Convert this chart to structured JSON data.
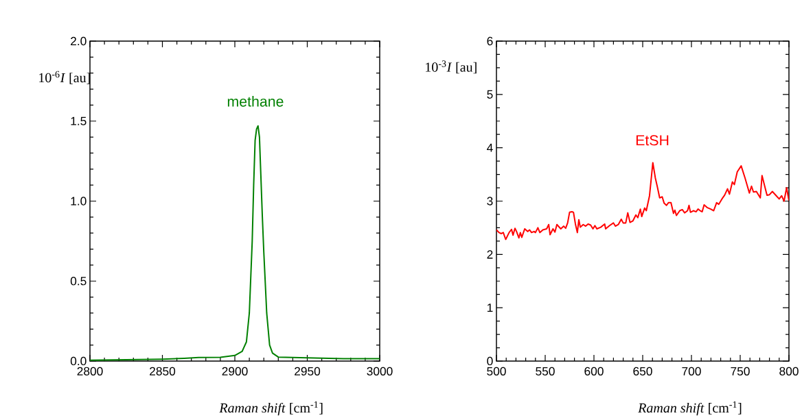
{
  "chart_data": [
    {
      "type": "line",
      "color": "#008000",
      "xlabel": "*Raman shift* [cm$^{-1}$]",
      "ylabel": "10$^{-6}$*I* [au]",
      "annotations": [
        "methane"
      ],
      "xlim": [
        2800,
        3000
      ],
      "ylim": [
        0,
        2.0
      ],
      "xticks": [
        {
          "value": 2800,
          "label": "2800"
        },
        {
          "value": 2810,
          "label": null
        },
        {
          "value": 2820,
          "label": null
        },
        {
          "value": 2830,
          "label": null
        },
        {
          "value": 2840,
          "label": null
        },
        {
          "value": 2850,
          "label": "2850"
        },
        {
          "value": 2860,
          "label": null
        },
        {
          "value": 2870,
          "label": null
        },
        {
          "value": 2880,
          "label": null
        },
        {
          "value": 2890,
          "label": null
        },
        {
          "value": 2900,
          "label": "2900"
        },
        {
          "value": 2910,
          "label": null
        },
        {
          "value": 2920,
          "label": null
        },
        {
          "value": 2930,
          "label": null
        },
        {
          "value": 2940,
          "label": null
        },
        {
          "value": 2950,
          "label": "2950"
        },
        {
          "value": 2960,
          "label": null
        },
        {
          "value": 2970,
          "label": null
        },
        {
          "value": 2980,
          "label": null
        },
        {
          "value": 2990,
          "label": null
        },
        {
          "value": 3000,
          "label": "3000"
        }
      ],
      "yticks": [
        {
          "value": 0,
          "label": "0.0"
        },
        {
          "value": 0.1,
          "label": null
        },
        {
          "value": 0.2,
          "label": null
        },
        {
          "value": 0.3,
          "label": null
        },
        {
          "value": 0.4,
          "label": null
        },
        {
          "value": 0.5,
          "label": "0.5"
        },
        {
          "value": 0.6,
          "label": null
        },
        {
          "value": 0.7,
          "label": null
        },
        {
          "value": 0.8,
          "label": null
        },
        {
          "value": 0.9,
          "label": null
        },
        {
          "value": 1.0,
          "label": "1.0"
        },
        {
          "value": 1.1,
          "label": null
        },
        {
          "value": 1.2,
          "label": null
        },
        {
          "value": 1.3,
          "label": null
        },
        {
          "value": 1.4,
          "label": null
        },
        {
          "value": 1.5,
          "label": "1.5"
        },
        {
          "value": 1.6,
          "label": null
        },
        {
          "value": 1.7,
          "label": null
        },
        {
          "value": 1.8,
          "label": null
        },
        {
          "value": 1.9,
          "label": null
        },
        {
          "value": 2.0,
          "label": "2.0"
        }
      ],
      "x": [
        2800,
        2825,
        2850,
        2865,
        2875,
        2890,
        2900,
        2905,
        2908,
        2910,
        2912,
        2913,
        2914,
        2915,
        2916,
        2917,
        2918,
        2919,
        2920,
        2922,
        2924,
        2926,
        2930,
        2950,
        2975,
        3000
      ],
      "values": [
        0.005,
        0.008,
        0.012,
        0.017,
        0.022,
        0.024,
        0.035,
        0.06,
        0.12,
        0.3,
        0.75,
        1.1,
        1.38,
        1.45,
        1.47,
        1.4,
        1.15,
        0.9,
        0.68,
        0.3,
        0.1,
        0.05,
        0.025,
        0.02,
        0.015,
        0.015
      ]
    },
    {
      "type": "line",
      "color": "#ff0000",
      "xlabel": "*Raman shift* [cm$^{-1}$]",
      "ylabel": "10$^{-3}$*I* [au]",
      "annotations": [
        "EtSH"
      ],
      "xlim": [
        500,
        800
      ],
      "ylim": [
        0,
        6
      ],
      "xticks": [
        {
          "value": 500,
          "label": "500"
        },
        {
          "value": 510,
          "label": null
        },
        {
          "value": 520,
          "label": null
        },
        {
          "value": 530,
          "label": null
        },
        {
          "value": 540,
          "label": null
        },
        {
          "value": 550,
          "label": "550"
        },
        {
          "value": 560,
          "label": null
        },
        {
          "value": 570,
          "label": null
        },
        {
          "value": 580,
          "label": null
        },
        {
          "value": 590,
          "label": null
        },
        {
          "value": 600,
          "label": "600"
        },
        {
          "value": 610,
          "label": null
        },
        {
          "value": 620,
          "label": null
        },
        {
          "value": 630,
          "label": null
        },
        {
          "value": 640,
          "label": null
        },
        {
          "value": 650,
          "label": "650"
        },
        {
          "value": 660,
          "label": null
        },
        {
          "value": 670,
          "label": null
        },
        {
          "value": 680,
          "label": null
        },
        {
          "value": 690,
          "label": null
        },
        {
          "value": 700,
          "label": "700"
        },
        {
          "value": 710,
          "label": null
        },
        {
          "value": 720,
          "label": null
        },
        {
          "value": 730,
          "label": null
        },
        {
          "value": 740,
          "label": null
        },
        {
          "value": 750,
          "label": "750"
        },
        {
          "value": 760,
          "label": null
        },
        {
          "value": 770,
          "label": null
        },
        {
          "value": 780,
          "label": null
        },
        {
          "value": 790,
          "label": null
        },
        {
          "value": 800,
          "label": "800"
        }
      ],
      "yticks": [
        {
          "value": 0,
          "label": "0"
        },
        {
          "value": 0.25,
          "label": null
        },
        {
          "value": 0.5,
          "label": null
        },
        {
          "value": 0.75,
          "label": null
        },
        {
          "value": 1,
          "label": "1"
        },
        {
          "value": 1.25,
          "label": null
        },
        {
          "value": 1.5,
          "label": null
        },
        {
          "value": 1.75,
          "label": null
        },
        {
          "value": 2,
          "label": "2"
        },
        {
          "value": 2.25,
          "label": null
        },
        {
          "value": 2.5,
          "label": null
        },
        {
          "value": 2.75,
          "label": null
        },
        {
          "value": 3,
          "label": "3"
        },
        {
          "value": 3.25,
          "label": null
        },
        {
          "value": 3.5,
          "label": null
        },
        {
          "value": 3.75,
          "label": null
        },
        {
          "value": 4,
          "label": "4"
        },
        {
          "value": 4.25,
          "label": null
        },
        {
          "value": 4.5,
          "label": null
        },
        {
          "value": 4.75,
          "label": null
        },
        {
          "value": 5,
          "label": "5"
        },
        {
          "value": 5.25,
          "label": null
        },
        {
          "value": 5.5,
          "label": null
        },
        {
          "value": 5.75,
          "label": null
        },
        {
          "value": 6,
          "label": "6"
        }
      ],
      "x": [
        500,
        502.6,
        505,
        507,
        509.5,
        513,
        515.5,
        517,
        519,
        520.6,
        523,
        524.5,
        526,
        529,
        532,
        534,
        536,
        538.6,
        540,
        542.5,
        544.5,
        547.6,
        551.5,
        553.6,
        555,
        558,
        560,
        562,
        566,
        569,
        571,
        573,
        575,
        577.5,
        579,
        581,
        583,
        584.5,
        586,
        589,
        591.5,
        594,
        596.6,
        599,
        601,
        603,
        607,
        611,
        612,
        616,
        620,
        622,
        625,
        628,
        630,
        632.6,
        634.7,
        637,
        640,
        643,
        645,
        647.6,
        649,
        652,
        653.7,
        657,
        660.4,
        663,
        665,
        667.4,
        670,
        672,
        674.4,
        676.4,
        679,
        681.6,
        683,
        684.6,
        688,
        690.6,
        693,
        696,
        697.5,
        699,
        702,
        704.7,
        706.8,
        709,
        711,
        713,
        716,
        719.7,
        722.8,
        725.8,
        728,
        732,
        734,
        737,
        739,
        742,
        744,
        747,
        751,
        755,
        758,
        759.4,
        761.6,
        763.6,
        766.6,
        770.6,
        772.4,
        775,
        777.5,
        780,
        783,
        787,
        790,
        792.5,
        795,
        797.6,
        800
      ],
      "values": [
        2.46,
        2.41,
        2.39,
        2.41,
        2.28,
        2.41,
        2.47,
        2.36,
        2.49,
        2.43,
        2.31,
        2.41,
        2.32,
        2.48,
        2.43,
        2.46,
        2.41,
        2.43,
        2.41,
        2.5,
        2.41,
        2.46,
        2.48,
        2.56,
        2.37,
        2.48,
        2.42,
        2.56,
        2.48,
        2.53,
        2.49,
        2.59,
        2.79,
        2.8,
        2.79,
        2.57,
        2.41,
        2.65,
        2.51,
        2.56,
        2.53,
        2.57,
        2.55,
        2.48,
        2.54,
        2.48,
        2.51,
        2.57,
        2.48,
        2.54,
        2.59,
        2.53,
        2.56,
        2.66,
        2.59,
        2.59,
        2.78,
        2.6,
        2.63,
        2.74,
        2.69,
        2.85,
        2.71,
        2.87,
        2.82,
        3.1,
        3.72,
        3.43,
        3.27,
        3.06,
        3.08,
        2.96,
        2.92,
        2.97,
        2.97,
        2.77,
        2.83,
        2.73,
        2.82,
        2.84,
        2.78,
        2.82,
        2.92,
        2.79,
        2.82,
        2.8,
        2.85,
        2.82,
        2.8,
        2.93,
        2.88,
        2.85,
        2.82,
        2.97,
        2.94,
        3.06,
        3.11,
        3.23,
        3.13,
        3.36,
        3.31,
        3.55,
        3.66,
        3.43,
        3.24,
        3.15,
        3.28,
        3.17,
        3.18,
        3.06,
        3.48,
        3.29,
        3.11,
        3.12,
        3.18,
        3.1,
        3.04,
        3.1,
        3.0,
        3.25,
        3.01
      ]
    }
  ]
}
